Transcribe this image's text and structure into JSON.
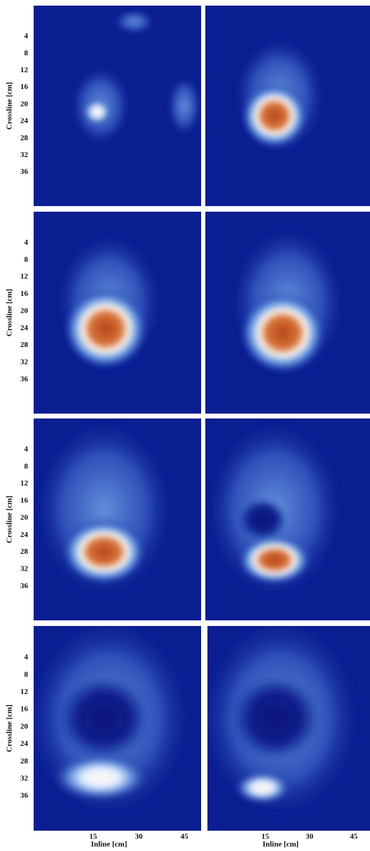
{
  "chart_data": [
    {
      "type": "heatmap",
      "ylabel": "Crossline [cm]",
      "ylim": [
        -3.3,
        44
      ],
      "yticks": [
        4,
        8,
        12,
        16,
        20,
        24,
        28,
        32,
        36
      ]
    },
    {
      "type": "heatmap"
    },
    {
      "type": "heatmap",
      "ylabel": "Crossline [cm]",
      "ylim": [
        -3.3,
        44
      ],
      "yticks": [
        4,
        8,
        12,
        16,
        20,
        24,
        28,
        32,
        36
      ]
    },
    {
      "type": "heatmap"
    },
    {
      "type": "heatmap",
      "ylabel": "Crossline [cm]",
      "ylim": [
        -3.3,
        44
      ],
      "yticks": [
        4,
        8,
        12,
        16,
        20,
        24,
        28,
        32,
        36
      ]
    },
    {
      "type": "heatmap"
    },
    {
      "type": "heatmap",
      "ylabel": "Crossline [cm]",
      "ylim": [
        -3.3,
        44
      ],
      "yticks": [
        4,
        8,
        12,
        16,
        20,
        24,
        28,
        32,
        36
      ],
      "xlabel": "Inline [cm]",
      "xlim": [
        -4.6,
        50.5
      ],
      "xticks": [
        15,
        30,
        45
      ]
    },
    {
      "type": "heatmap",
      "xlabel": "Inline [cm]",
      "xlim": [
        -4.6,
        50.5
      ],
      "xticks": [
        15,
        30,
        45
      ]
    }
  ]
}
